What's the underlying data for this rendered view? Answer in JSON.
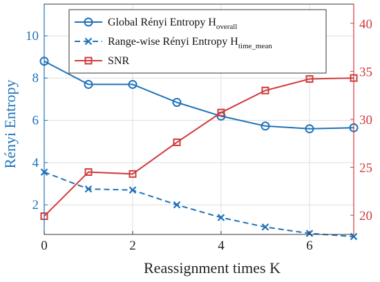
{
  "chart_data": {
    "type": "line",
    "x": [
      0,
      1,
      2,
      3,
      4,
      5,
      6,
      7
    ],
    "xlabel": "Reassignment times K",
    "ylabel_left": "Rényi Entropy",
    "ylabel_right": "",
    "xlim": [
      0,
      7
    ],
    "ylim_left": [
      0.6,
      11.5
    ],
    "ylim_right": [
      18,
      42
    ],
    "xticks": [
      "0",
      "2",
      "4",
      "6"
    ],
    "yticks_left": [
      "2",
      "4",
      "6",
      "8",
      "10"
    ],
    "yticks_right": [
      "20",
      "25",
      "30",
      "35",
      "40"
    ],
    "grid": true,
    "legend_position": "top",
    "series": [
      {
        "name": "Global Rényi Entropy H",
        "name_sub": "overall",
        "axis": "left",
        "color": "#1f72b8",
        "line_style": "solid",
        "marker": "circle",
        "values": [
          8.8,
          7.7,
          7.7,
          6.85,
          6.2,
          5.73,
          5.6,
          5.65
        ]
      },
      {
        "name": "Range-wise Rényi Entropy  H",
        "name_sub": "time_mean",
        "axis": "left",
        "color": "#1f72b8",
        "line_style": "dashed",
        "marker": "x",
        "values": [
          3.55,
          2.75,
          2.7,
          2.0,
          1.4,
          0.95,
          0.65,
          0.5
        ]
      },
      {
        "name": "SNR",
        "name_sub": "",
        "axis": "right",
        "color": "#d03b3b",
        "line_style": "solid",
        "marker": "square",
        "values": [
          19.9,
          24.5,
          24.3,
          27.6,
          30.7,
          33.0,
          34.2,
          34.3
        ]
      }
    ]
  }
}
